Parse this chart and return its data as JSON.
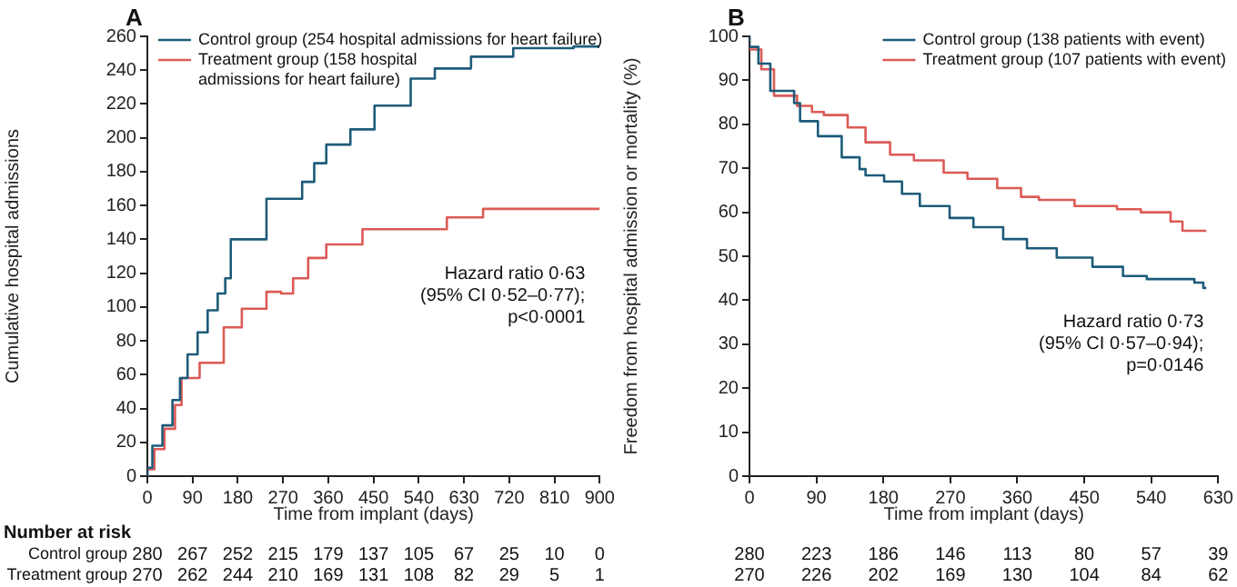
{
  "chart_data": [
    {
      "type": "step",
      "title": "A",
      "xlabel": "Time from implant (days)",
      "ylabel": "Cumulative hospital admissions",
      "series": [
        {
          "name": "Control group (254 hospital admissions for heart failure)",
          "color": "#1d5b79",
          "x": [
            0,
            10,
            30,
            50,
            65,
            80,
            100,
            120,
            140,
            155,
            166,
            237,
            308,
            332,
            356,
            404,
            452,
            524,
            572,
            644,
            728,
            848,
            876,
            900
          ],
          "values": [
            0,
            5,
            18,
            30,
            45,
            58,
            72,
            85,
            98,
            108,
            117,
            140,
            164,
            174,
            185,
            196,
            205,
            219,
            235,
            241,
            248,
            253,
            254,
            254
          ]
        },
        {
          "name": "Treatment group (158 hospital admissions for heart failure)",
          "color": "#dc5a55",
          "x": [
            0,
            14,
            34,
            55,
            68,
            104,
            152,
            188,
            237,
            266,
            290,
            320,
            356,
            428,
            512,
            596,
            668,
            764,
            900
          ],
          "values": [
            0,
            4,
            16,
            28,
            42,
            58,
            67,
            88,
            99,
            109,
            108,
            117,
            129,
            137,
            146,
            146,
            153,
            158,
            158
          ]
        }
      ],
      "xlim": [
        0,
        900
      ],
      "xticks": [
        0,
        90,
        180,
        270,
        360,
        450,
        540,
        630,
        720,
        810,
        900
      ],
      "ylim": [
        0,
        260
      ],
      "yticks": [
        0,
        20,
        40,
        60,
        80,
        100,
        120,
        140,
        160,
        180,
        200,
        220,
        240,
        260
      ],
      "legend": "top left",
      "grid": false,
      "annotations": [
        "Hazard ratio 0·63",
        "(95% CI 0·52–0·77);",
        "p<0·0001",
        "Number at risk",
        "Control group",
        "280",
        "267",
        "252",
        "215",
        "179",
        "137",
        "105",
        "67",
        "25",
        "10",
        "0",
        "Treatment group",
        "270",
        "262",
        "244",
        "210",
        "169",
        "131",
        "108",
        "82",
        "29",
        "5",
        "1"
      ]
    },
    {
      "type": "step",
      "title": "B",
      "xlabel": "Time from implant (days)",
      "ylabel": "Freedom from hospital admission or mortality (%)",
      "series": [
        {
          "name": "Control group (138 patients with event)",
          "color": "#1d5b79",
          "x": [
            0,
            12,
            28,
            60,
            68,
            92,
            124,
            148,
            156,
            181,
            205,
            229,
            269,
            301,
            341,
            373,
            413,
            461,
            502,
            534,
            598,
            610,
            614
          ],
          "values": [
            100,
            97.6,
            93.8,
            87.6,
            84.8,
            80.7,
            77.3,
            72.5,
            69.8,
            68.4,
            67,
            64.2,
            61.4,
            58.7,
            56.6,
            53.9,
            51.8,
            49.7,
            47.6,
            45.5,
            44.8,
            44,
            42.8
          ]
        },
        {
          "name": "Treatment group (107 patients with event)",
          "color": "#dc5a55",
          "x": [
            0,
            16,
            33,
            64,
            84,
            100,
            132,
            156,
            189,
            221,
            261,
            293,
            333,
            365,
            389,
            437,
            494,
            526,
            566,
            582,
            614
          ],
          "values": [
            100,
            97,
            92.5,
            86.5,
            84.2,
            82.8,
            82.1,
            79.3,
            75.9,
            73.1,
            71.8,
            69,
            67.6,
            65.5,
            63.5,
            62.8,
            61.4,
            60.7,
            60,
            57.9,
            55.8
          ]
        }
      ],
      "xlim": [
        0,
        630
      ],
      "xticks": [
        0,
        90,
        180,
        270,
        360,
        450,
        540,
        630
      ],
      "ylim": [
        0,
        100
      ],
      "yticks": [
        0,
        10,
        20,
        30,
        40,
        50,
        60,
        70,
        80,
        90,
        100
      ],
      "legend": "top right",
      "grid": false,
      "annotations": [
        "Hazard ratio 0·73",
        "(95% CI 0·57–0·94);",
        "p=0·0146",
        "280",
        "223",
        "186",
        "146",
        "113",
        "80",
        "57",
        "39",
        "270",
        "226",
        "202",
        "169",
        "130",
        "104",
        "84",
        "62"
      ]
    }
  ]
}
